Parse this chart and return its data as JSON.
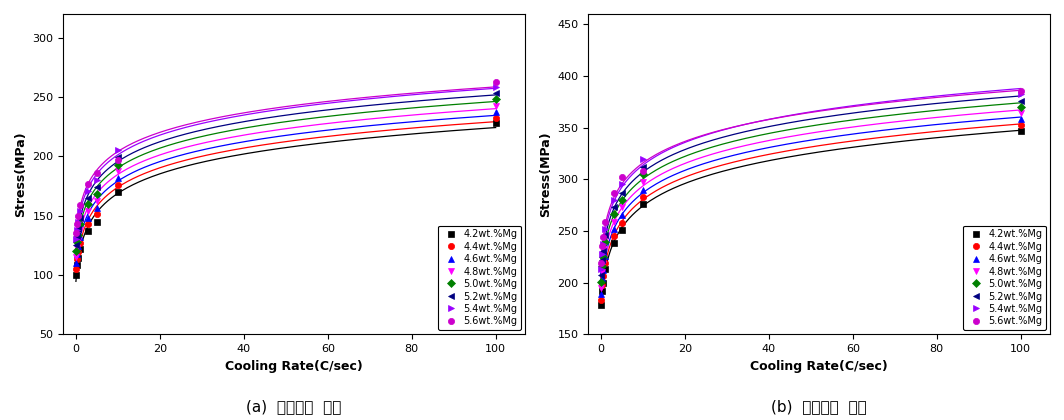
{
  "series": [
    {
      "label": "4.2wt.%Mg",
      "color": "#000000",
      "marker": "s"
    },
    {
      "label": "4.4wt.%Mg",
      "color": "#ff0000",
      "marker": "o"
    },
    {
      "label": "4.6wt.%Mg",
      "color": "#0000ff",
      "marker": "^"
    },
    {
      "label": "4.8wt.%Mg",
      "color": "#ff00ff",
      "marker": "v"
    },
    {
      "label": "5.0wt.%Mg",
      "color": "#008000",
      "marker": "D"
    },
    {
      "label": "5.2wt.%Mg",
      "color": "#000080",
      "marker": "<"
    },
    {
      "label": "5.4wt.%Mg",
      "color": "#9900ff",
      "marker": ">"
    },
    {
      "label": "5.6wt.%Mg",
      "color": "#cc00cc",
      "marker": "o"
    }
  ],
  "x_data_points": [
    0.1,
    0.3,
    0.5,
    1.0,
    3.0,
    5.0,
    10.0,
    100.0
  ],
  "ys_yield": [
    [
      100,
      108,
      114,
      122,
      137,
      145,
      170,
      228
    ],
    [
      105,
      113,
      119,
      127,
      143,
      151,
      176,
      232
    ],
    [
      110,
      118,
      124,
      132,
      148,
      156,
      182,
      237
    ],
    [
      115,
      123,
      129,
      138,
      154,
      162,
      188,
      242
    ],
    [
      120,
      128,
      134,
      143,
      160,
      168,
      193,
      248
    ],
    [
      125,
      133,
      139,
      148,
      165,
      174,
      199,
      253
    ],
    [
      130,
      138,
      145,
      154,
      171,
      180,
      205,
      258
    ],
    [
      135,
      143,
      150,
      159,
      177,
      186,
      197,
      263
    ]
  ],
  "ys_tensile": [
    [
      178,
      192,
      200,
      213,
      238,
      251,
      276,
      347
    ],
    [
      183,
      198,
      206,
      219,
      245,
      258,
      283,
      352
    ],
    [
      189,
      204,
      212,
      226,
      252,
      265,
      290,
      358
    ],
    [
      195,
      210,
      218,
      232,
      259,
      273,
      297,
      364
    ],
    [
      201,
      216,
      225,
      239,
      266,
      280,
      305,
      370
    ],
    [
      207,
      222,
      231,
      246,
      273,
      287,
      312,
      376
    ],
    [
      213,
      228,
      237,
      252,
      280,
      295,
      320,
      382
    ],
    [
      219,
      235,
      244,
      259,
      287,
      302,
      308,
      385
    ]
  ],
  "ylabel": "Stress(MPa)",
  "xlabel": "Cooling Rate(C/sec)",
  "xlim": [
    -3,
    107
  ],
  "ylim_yield": [
    50,
    320
  ],
  "ylim_tensile": [
    150,
    460
  ],
  "yticks_yield": [
    50,
    100,
    150,
    200,
    250,
    300
  ],
  "yticks_tensile": [
    150,
    200,
    250,
    300,
    350,
    400,
    450
  ],
  "xticks": [
    0,
    20,
    40,
    60,
    80,
    100
  ],
  "caption_a": "(a)  항복강도  예측",
  "caption_b": "(b)  인장강도  예측",
  "background_color": "#ffffff",
  "legend_fontsize": 7.0,
  "axis_label_fontsize": 9,
  "tick_fontsize": 8,
  "caption_fontsize": 11
}
